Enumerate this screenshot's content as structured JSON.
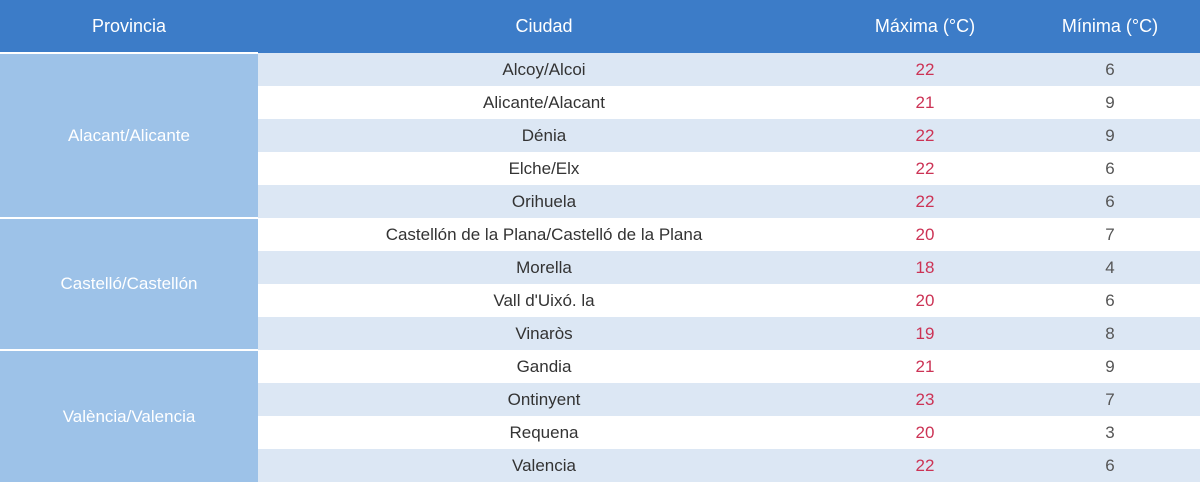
{
  "chart_data": {
    "type": "table",
    "columns": [
      "Provincia",
      "Ciudad",
      "Máxima (°C)",
      "Mínima (°C)"
    ],
    "groups": [
      {
        "province": "Alacant/Alicante",
        "cities": [
          {
            "name": "Alcoy/Alcoi",
            "max": "22",
            "min": "6"
          },
          {
            "name": "Alicante/Alacant",
            "max": "21",
            "min": "9"
          },
          {
            "name": "Dénia",
            "max": "22",
            "min": "9"
          },
          {
            "name": "Elche/Elx",
            "max": "22",
            "min": "6"
          },
          {
            "name": "Orihuela",
            "max": "22",
            "min": "6"
          }
        ]
      },
      {
        "province": "Castelló/Castellón",
        "cities": [
          {
            "name": "Castellón de la Plana/Castelló de la Plana",
            "max": "20",
            "min": "7"
          },
          {
            "name": "Morella",
            "max": "18",
            "min": "4"
          },
          {
            "name": "Vall d'Uixó. la",
            "max": "20",
            "min": "6"
          },
          {
            "name": "Vinaròs",
            "max": "19",
            "min": "8"
          }
        ]
      },
      {
        "province": "València/Valencia",
        "cities": [
          {
            "name": "Gandia",
            "max": "21",
            "min": "9"
          },
          {
            "name": "Ontinyent",
            "max": "23",
            "min": "7"
          },
          {
            "name": "Requena",
            "max": "20",
            "min": "3"
          },
          {
            "name": "Valencia",
            "max": "22",
            "min": "6"
          }
        ]
      }
    ]
  },
  "colors": {
    "header_bg": "#3c7cc8",
    "header_text": "#ffffff",
    "province_bg": "#9dc2e8",
    "province_text": "#ffffff",
    "row_shaded_bg": "#dce7f4",
    "row_plain_bg": "#ffffff",
    "max_temp_color": "#cc3355",
    "min_temp_color": "#555555",
    "city_text_color": "#333333"
  }
}
